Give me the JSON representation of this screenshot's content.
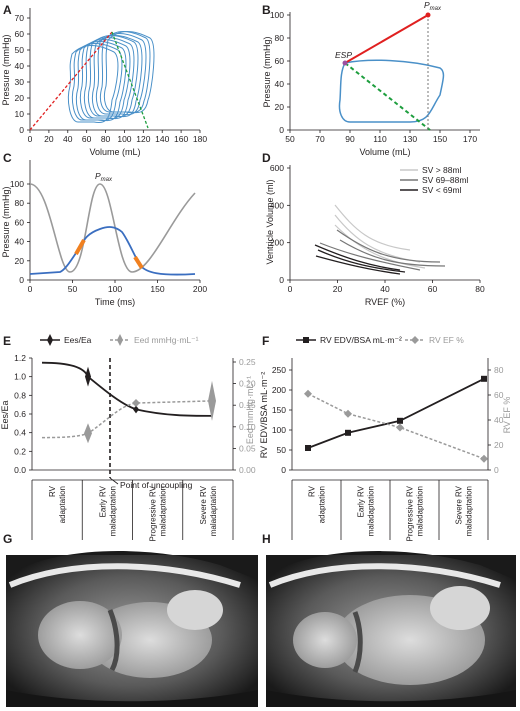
{
  "panels": {
    "a": {
      "label": "A",
      "ylabel": "Pressure (mmHg)",
      "xlabel": "Volume (mL)",
      "xticks": [
        "0",
        "20",
        "40",
        "60",
        "80",
        "100",
        "120",
        "140",
        "160",
        "180"
      ],
      "yticks": [
        "0",
        "10",
        "20",
        "30",
        "40",
        "50",
        "60",
        "70"
      ]
    },
    "b": {
      "label": "B",
      "ylabel": "Pressure (mmHg)",
      "xlabel": "Volume (mL)",
      "xticks": [
        "50",
        "70",
        "90",
        "110",
        "130",
        "150",
        "170"
      ],
      "yticks": [
        "0",
        "20",
        "40",
        "60",
        "80",
        "100"
      ],
      "esp": "ESP",
      "pmax_p": "P",
      "pmax_sub": "max"
    },
    "c": {
      "label": "C",
      "ylabel": "Pressure (mmHg)",
      "xlabel": "Time (ms)",
      "xticks": [
        "0",
        "50",
        "100",
        "150",
        "200"
      ],
      "yticks": [
        "0",
        "20",
        "40",
        "60",
        "80",
        "100"
      ],
      "pmax_p": "P",
      "pmax_sub": "max"
    },
    "d": {
      "label": "D",
      "ylabel": "Ventricle Volume (ml)",
      "xlabel": "RVEF (%)",
      "xticks": [
        "0",
        "20",
        "40",
        "60",
        "80"
      ],
      "yticks": [
        "0",
        "200",
        "400",
        "600"
      ],
      "legend": [
        "SV > 88ml",
        "SV 69–88ml",
        "SV < 69ml"
      ]
    },
    "e": {
      "label": "E",
      "ylabel_left": "Ees/Ea",
      "ylabel_right": "Eed mmHg·mL⁻¹",
      "legend_1": "Ees/Ea",
      "legend_2": "Eed mmHg·mL⁻¹",
      "yticks_left": [
        "0.0",
        "0.2",
        "0.4",
        "0.6",
        "0.8",
        "1.0",
        "1.2"
      ],
      "yticks_right": [
        "0.00",
        "0.05",
        "0.10",
        "0.15",
        "0.20",
        "0.25"
      ],
      "annotation": "Point of uncoupling"
    },
    "f": {
      "label": "F",
      "ylabel_left": "RV EDV/BSA mL·m⁻²",
      "ylabel_right": "RV EF %",
      "legend_1": "RV EDV/BSA mL·m⁻²",
      "legend_2": "RV EF %",
      "yticks_left": [
        "0",
        "50",
        "100",
        "150",
        "200",
        "250"
      ],
      "yticks_right": [
        "0",
        "20",
        "40",
        "60",
        "80"
      ]
    },
    "g": {
      "label": "G"
    },
    "h": {
      "label": "H"
    }
  },
  "stages": [
    [
      "RV",
      "adaptation"
    ],
    [
      "Early RV",
      "maladaptation"
    ],
    [
      "Progressive RV",
      "maladaptation"
    ],
    [
      "Severe RV",
      "maladaptation"
    ]
  ],
  "colors": {
    "loop": "#4a90c8",
    "red": "#e02020",
    "green": "#1e9e3e",
    "grey": "#9a9a9a",
    "orange": "#f08020",
    "dark": "#231f20"
  },
  "chart_data": [
    {
      "type": "line",
      "panel": "E",
      "xlabel": "",
      "ylabel": "Ees/Ea",
      "ylim": [
        0,
        1.2
      ],
      "categories": [
        "RV adaptation",
        "Early RV maladaptation",
        "Progressive RV maladaptation",
        "Severe RV maladaptation"
      ],
      "series": [
        {
          "name": "Ees/Ea",
          "x": [
            0,
            1,
            2,
            3
          ],
          "values": [
            1.15,
            1.0,
            0.65,
            0.58
          ]
        },
        {
          "name": "Eed mmHg·mL⁻¹",
          "x": [
            0,
            1,
            2,
            3
          ],
          "values": [
            0.075,
            0.085,
            0.155,
            0.16
          ]
        }
      ]
    },
    {
      "type": "line",
      "panel": "F",
      "ylabel": "RV EDV/BSA mL·m⁻²",
      "ylim": [
        0,
        250
      ],
      "categories": [
        "RV adaptation",
        "Early RV maladaptation",
        "Progressive RV maladaptation",
        "Severe RV maladaptation"
      ],
      "series": [
        {
          "name": "RV EDV/BSA mL·m⁻²",
          "values": [
            55,
            93,
            123,
            228
          ]
        },
        {
          "name": "RV EF %",
          "values": [
            61,
            45,
            34,
            9
          ]
        }
      ]
    }
  ]
}
